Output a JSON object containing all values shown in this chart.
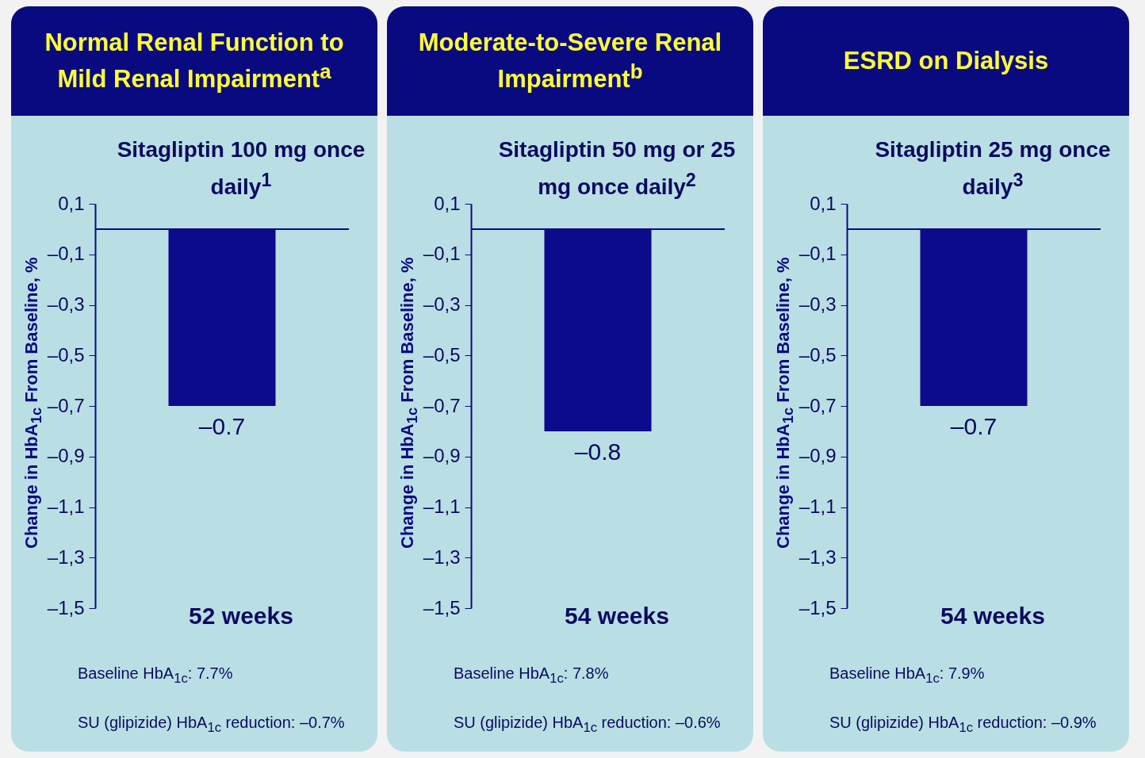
{
  "chart_data": [
    {
      "type": "bar",
      "title": "Normal Renal Function to Mild Renal Impairment$^{a}$",
      "subtitle": "Sitagliptin 100 mg once daily$^{1}$",
      "ylabel": "Change in HbA$_{1c}$ From Baseline, %",
      "xlabel": "52 weeks",
      "categories": [
        null
      ],
      "values": [
        -0.7
      ],
      "value_labels": [
        "–0.7"
      ],
      "color": "#0b0b8c",
      "ylim": [
        -1.5,
        0.1
      ],
      "yticks": [
        {
          "value": 0.1,
          "label": "0,1"
        },
        {
          "value": -0.1,
          "label": "–0,1"
        },
        {
          "value": -0.3,
          "label": "–0,3"
        },
        {
          "value": -0.5,
          "label": "–0,5"
        },
        {
          "value": -0.7,
          "label": "–0,7"
        },
        {
          "value": -0.9,
          "label": "–0,9"
        },
        {
          "value": -1.1,
          "label": "–1,1"
        },
        {
          "value": -1.3,
          "label": "–1,3"
        },
        {
          "value": -1.5,
          "label": "–1,5"
        }
      ],
      "ref_lines": [
        {
          "axis": "y",
          "value": 0,
          "color": "#0a0a80"
        }
      ],
      "annotations": [
        "Baseline HbA$_{1c}$: 7.7%",
        "SU (glipizide) HbA$_{1c}$ reduction: –0.7%"
      ]
    },
    {
      "type": "bar",
      "title": "Moderate-to-Severe Renal Impairment$^{b}$",
      "subtitle": "Sitagliptin 50 mg or 25 mg once daily$^{2}$",
      "ylabel": "Change in HbA$_{1c}$ From Baseline, %",
      "xlabel": "54 weeks",
      "categories": [
        null
      ],
      "values": [
        -0.8
      ],
      "value_labels": [
        "–0.8"
      ],
      "color": "#0b0b8c",
      "ylim": [
        -1.5,
        0.1
      ],
      "yticks": [
        {
          "value": 0.1,
          "label": "0,1"
        },
        {
          "value": -0.1,
          "label": "–0,1"
        },
        {
          "value": -0.3,
          "label": "–0,3"
        },
        {
          "value": -0.5,
          "label": "–0,5"
        },
        {
          "value": -0.7,
          "label": "–0,7"
        },
        {
          "value": -0.9,
          "label": "–0,9"
        },
        {
          "value": -1.1,
          "label": "–1,1"
        },
        {
          "value": -1.3,
          "label": "–1,3"
        },
        {
          "value": -1.5,
          "label": "–1,5"
        }
      ],
      "ref_lines": [
        {
          "axis": "y",
          "value": 0,
          "color": "#0a0a80"
        }
      ],
      "annotations": [
        "Baseline HbA$_{1c}$: 7.8%",
        "SU (glipizide) HbA$_{1c}$ reduction: –0.6%"
      ]
    },
    {
      "type": "bar",
      "title": "ESRD on Dialysis",
      "subtitle": "Sitagliptin 25 mg once daily$^{3}$",
      "ylabel": "Change in HbA$_{1c}$ From Baseline, %",
      "xlabel": "54 weeks",
      "categories": [
        null
      ],
      "values": [
        -0.7
      ],
      "value_labels": [
        "–0.7"
      ],
      "color": "#0b0b8c",
      "ylim": [
        -1.5,
        0.1
      ],
      "yticks": [
        {
          "value": 0.1,
          "label": "0,1"
        },
        {
          "value": -0.1,
          "label": "–0,1"
        },
        {
          "value": -0.3,
          "label": "–0,3"
        },
        {
          "value": -0.5,
          "label": "–0,5"
        },
        {
          "value": -0.7,
          "label": "–0,7"
        },
        {
          "value": -0.9,
          "label": "–0,9"
        },
        {
          "value": -1.1,
          "label": "–1,1"
        },
        {
          "value": -1.3,
          "label": "–1,3"
        },
        {
          "value": -1.5,
          "label": "–1,5"
        }
      ],
      "ref_lines": [
        {
          "axis": "y",
          "value": 0,
          "color": "#0a0a80"
        }
      ],
      "annotations": [
        "Baseline HbA$_{1c}$: 7.9%",
        "SU (glipizide) HbA$_{1c}$ reduction: –0.9%"
      ]
    }
  ]
}
